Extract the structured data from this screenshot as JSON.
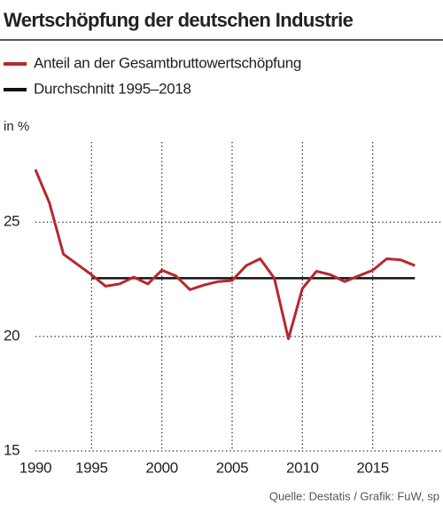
{
  "chart_data": {
    "type": "line",
    "title": "Wertschöpfung der deutschen Industrie",
    "y_label": "in %",
    "source": "Quelle: Destatis / Grafik: FuW, sp",
    "x": [
      1991,
      1992,
      1993,
      1994,
      1995,
      1996,
      1997,
      1998,
      1999,
      2000,
      2001,
      2002,
      2003,
      2004,
      2005,
      2006,
      2007,
      2008,
      2009,
      2010,
      2011,
      2012,
      2013,
      2014,
      2015,
      2016,
      2017,
      2018
    ],
    "series": [
      {
        "name": "Anteil an der Gesamtbruttowertschöpfung",
        "color": "#b8272e",
        "values": [
          27.3,
          25.85,
          23.6,
          23.15,
          22.7,
          22.2,
          22.3,
          22.6,
          22.3,
          22.9,
          22.65,
          22.05,
          22.25,
          22.4,
          22.45,
          23.1,
          23.4,
          22.55,
          19.9,
          22.1,
          22.85,
          22.7,
          22.4,
          22.65,
          22.9,
          23.4,
          23.35,
          23.1
        ]
      },
      {
        "name": "Durchschnitt 1995–2018",
        "color": "#111111",
        "values": [
          null,
          null,
          null,
          null,
          22.55,
          22.55,
          22.55,
          22.55,
          22.55,
          22.55,
          22.55,
          22.55,
          22.55,
          22.55,
          22.55,
          22.55,
          22.55,
          22.55,
          22.55,
          22.55,
          22.55,
          22.55,
          22.55,
          22.55,
          22.55,
          22.55,
          22.55,
          22.55
        ]
      }
    ],
    "xlim": [
      1990,
      2020
    ],
    "xticks": [
      1990,
      1995,
      2000,
      2005,
      2010,
      2015
    ],
    "ylim": [
      15,
      28.5
    ],
    "yticks": [
      15,
      20,
      25
    ],
    "grid": true
  }
}
